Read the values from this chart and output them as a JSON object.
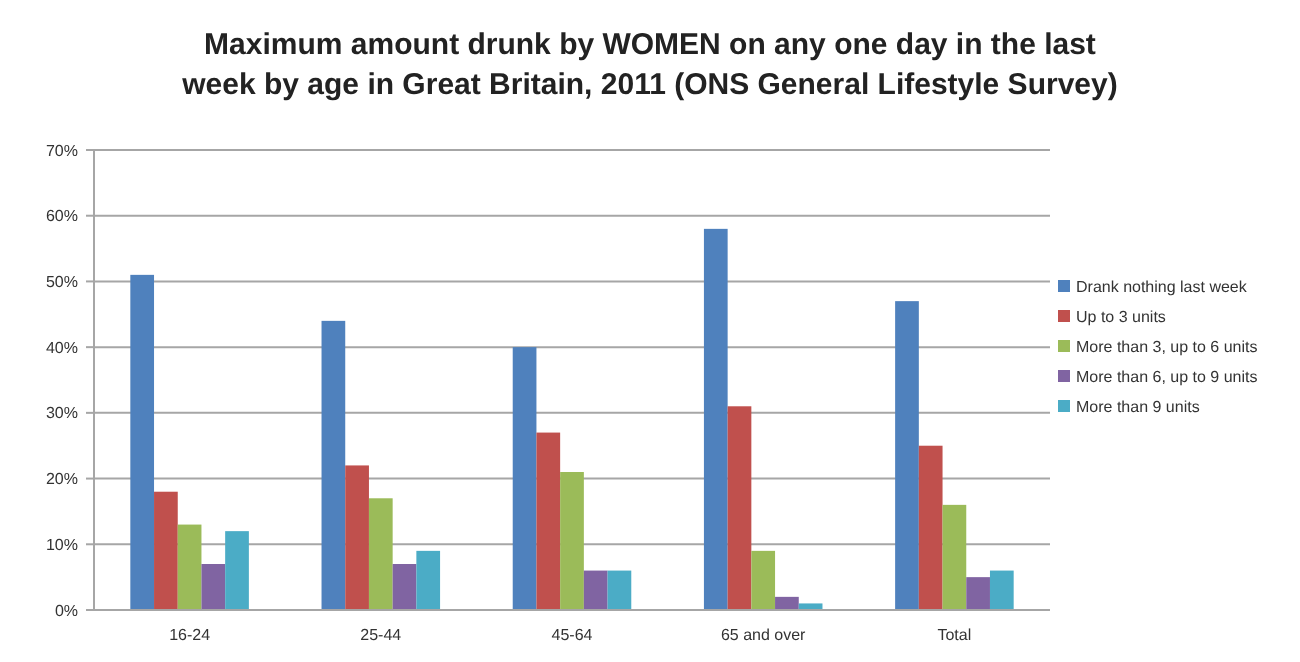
{
  "chart_data": {
    "type": "bar",
    "title": "Maximum amount drunk by WOMEN on any one day in the last week by age in Great Britain, 2011 (ONS General Lifestyle Survey)",
    "categories": [
      "16-24",
      "25-44",
      "45-64",
      "65 and over",
      "Total"
    ],
    "series": [
      {
        "name": "Drank nothing last week",
        "color": "#4f81bd",
        "values": [
          51,
          44,
          40,
          58,
          47
        ]
      },
      {
        "name": "Up to 3 units",
        "color": "#c0504d",
        "values": [
          18,
          22,
          27,
          31,
          25
        ]
      },
      {
        "name": "More than 3, up to 6 units",
        "color": "#9bbb59",
        "values": [
          13,
          17,
          21,
          9,
          16
        ]
      },
      {
        "name": "More than 6, up to 9 units",
        "color": "#8064a2",
        "values": [
          7,
          7,
          6,
          2,
          5
        ]
      },
      {
        "name": "More than 9 units",
        "color": "#4bacc6",
        "values": [
          12,
          9,
          6,
          1,
          6
        ]
      }
    ],
    "ylim": [
      0,
      70
    ],
    "yticks": [
      {
        "value": 0,
        "label": "0%"
      },
      {
        "value": 10,
        "label": "10%"
      },
      {
        "value": 20,
        "label": "20%"
      },
      {
        "value": 30,
        "label": "30%"
      },
      {
        "value": 40,
        "label": "40%"
      },
      {
        "value": 50,
        "label": "50%"
      },
      {
        "value": 60,
        "label": "60%"
      },
      {
        "value": 70,
        "label": "70%"
      }
    ],
    "grid": "y",
    "legend": "right"
  }
}
